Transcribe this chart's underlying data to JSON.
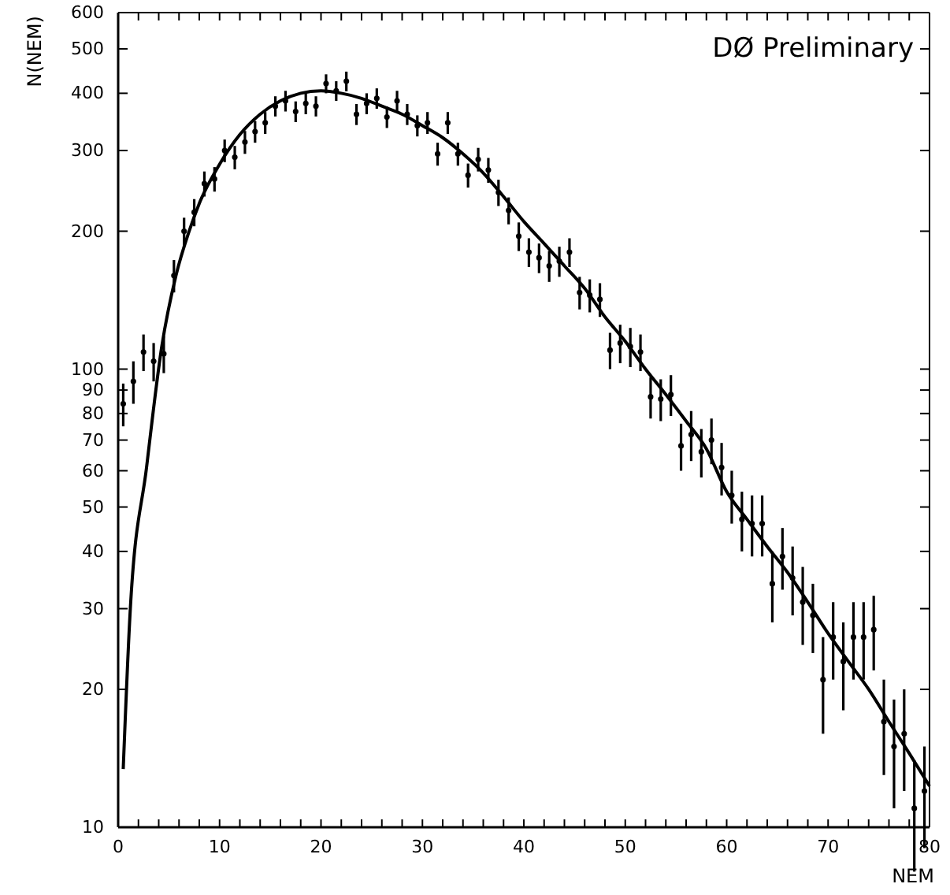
{
  "chart_data": {
    "type": "scatter",
    "xlabel": "NEM",
    "ylabel": "N(NEM)",
    "annotations": [
      "DØ Preliminary"
    ],
    "log": "y",
    "grid": false,
    "marker": "circle",
    "xlim": [
      0,
      80
    ],
    "ylim": [
      10,
      600
    ],
    "xticks": [
      0,
      {
        "value": 2,
        "label": null
      },
      {
        "value": 4,
        "label": null
      },
      {
        "value": 6,
        "label": null
      },
      {
        "value": 8,
        "label": null
      },
      10,
      {
        "value": 12,
        "label": null
      },
      {
        "value": 14,
        "label": null
      },
      {
        "value": 16,
        "label": null
      },
      {
        "value": 18,
        "label": null
      },
      20,
      {
        "value": 22,
        "label": null
      },
      {
        "value": 24,
        "label": null
      },
      {
        "value": 26,
        "label": null
      },
      {
        "value": 28,
        "label": null
      },
      30,
      {
        "value": 32,
        "label": null
      },
      {
        "value": 34,
        "label": null
      },
      {
        "value": 36,
        "label": null
      },
      {
        "value": 38,
        "label": null
      },
      40,
      {
        "value": 42,
        "label": null
      },
      {
        "value": 44,
        "label": null
      },
      {
        "value": 46,
        "label": null
      },
      {
        "value": 48,
        "label": null
      },
      50,
      {
        "value": 52,
        "label": null
      },
      {
        "value": 54,
        "label": null
      },
      {
        "value": 56,
        "label": null
      },
      {
        "value": 58,
        "label": null
      },
      60,
      {
        "value": 62,
        "label": null
      },
      {
        "value": 64,
        "label": null
      },
      {
        "value": 66,
        "label": null
      },
      {
        "value": 68,
        "label": null
      },
      70,
      {
        "value": 72,
        "label": null
      },
      {
        "value": 74,
        "label": null
      },
      {
        "value": 76,
        "label": null
      },
      {
        "value": 78,
        "label": null
      },
      80
    ],
    "yticks": [
      10,
      20,
      30,
      40,
      50,
      60,
      70,
      80,
      90,
      100,
      200,
      300,
      400,
      500,
      600
    ],
    "series": [
      {
        "color": "#000000",
        "x": [
          0.5,
          1.5,
          2.5,
          3.5,
          4.5,
          5.5,
          6.5,
          7.5,
          8.5,
          9.5,
          10.5,
          11.5,
          12.5,
          13.5,
          14.5,
          15.5,
          16.5,
          17.5,
          18.5,
          19.5,
          20.5,
          21.5,
          22.5,
          23.5,
          24.5,
          25.5,
          26.5,
          27.5,
          28.5,
          29.5,
          30.5,
          31.5,
          32.5,
          33.5,
          34.5,
          35.5,
          36.5,
          37.5,
          38.5,
          39.5,
          40.5,
          41.5,
          42.5,
          43.5,
          44.5,
          45.5,
          46.5,
          47.5,
          48.5,
          49.5,
          50.5,
          51.5,
          52.5,
          53.5,
          54.5,
          55.5,
          56.5,
          57.5,
          58.5,
          59.5,
          60.5,
          61.5,
          62.5,
          63.5,
          64.5,
          65.5,
          66.5,
          67.5,
          68.5,
          69.5,
          70.5,
          71.5,
          72.5,
          73.5,
          74.5,
          75.5,
          76.5,
          77.5,
          78.5,
          79.5
        ],
        "values": [
          84,
          94,
          109,
          104,
          108,
          160,
          200,
          220,
          254,
          260,
          300,
          290,
          313,
          330,
          345,
          375,
          385,
          365,
          380,
          375,
          420,
          405,
          425,
          360,
          380,
          390,
          355,
          385,
          360,
          340,
          345,
          295,
          345,
          295,
          265,
          287,
          272,
          243,
          222,
          195,
          180,
          175,
          168,
          172,
          180,
          147,
          145,
          142,
          110,
          114,
          112,
          109,
          87,
          86,
          88,
          68,
          72,
          66,
          70,
          61,
          53,
          47,
          46,
          46,
          34,
          39,
          35,
          31,
          29,
          21,
          26,
          23,
          26,
          26,
          27,
          17,
          15,
          16,
          11,
          12
        ],
        "errors": [
          9,
          10,
          10,
          10,
          10,
          13,
          14,
          15,
          16,
          16,
          17,
          17,
          18,
          18,
          19,
          19,
          20,
          19,
          20,
          19,
          20,
          20,
          21,
          19,
          20,
          20,
          19,
          20,
          19,
          18,
          19,
          17,
          19,
          17,
          16,
          17,
          17,
          16,
          15,
          14,
          13,
          13,
          13,
          13,
          13,
          12,
          12,
          12,
          10,
          11,
          11,
          10,
          9,
          9,
          9,
          8,
          9,
          8,
          8,
          8,
          7,
          7,
          7,
          7,
          6,
          6,
          6,
          6,
          5,
          5,
          5,
          5,
          5,
          5,
          5,
          4,
          4,
          4,
          3,
          3
        ]
      },
      {
        "type": "line",
        "color": "#000000",
        "marker": "none",
        "line_style": "solid",
        "x": [
          0.5,
          1.2,
          2.8,
          4.3,
          5.7,
          7,
          8,
          10,
          12,
          14,
          16,
          18,
          20,
          22,
          24,
          26,
          28,
          30,
          32,
          34,
          36,
          38,
          40,
          42,
          44,
          46,
          48,
          50,
          52,
          54,
          56,
          58,
          60,
          62,
          64,
          66,
          68,
          70,
          72,
          74,
          76,
          78,
          80
        ],
        "values": [
          13.4,
          30,
          61,
          112,
          160,
          200,
          230,
          280,
          325,
          360,
          385,
          400,
          405,
          400,
          390,
          375,
          360,
          340,
          320,
          295,
          268,
          238,
          210,
          188,
          168,
          150,
          130,
          115,
          100,
          88,
          77,
          67,
          54,
          47,
          41,
          36,
          31,
          26.5,
          23,
          20,
          17,
          14.5,
          12.3
        ]
      }
    ]
  }
}
